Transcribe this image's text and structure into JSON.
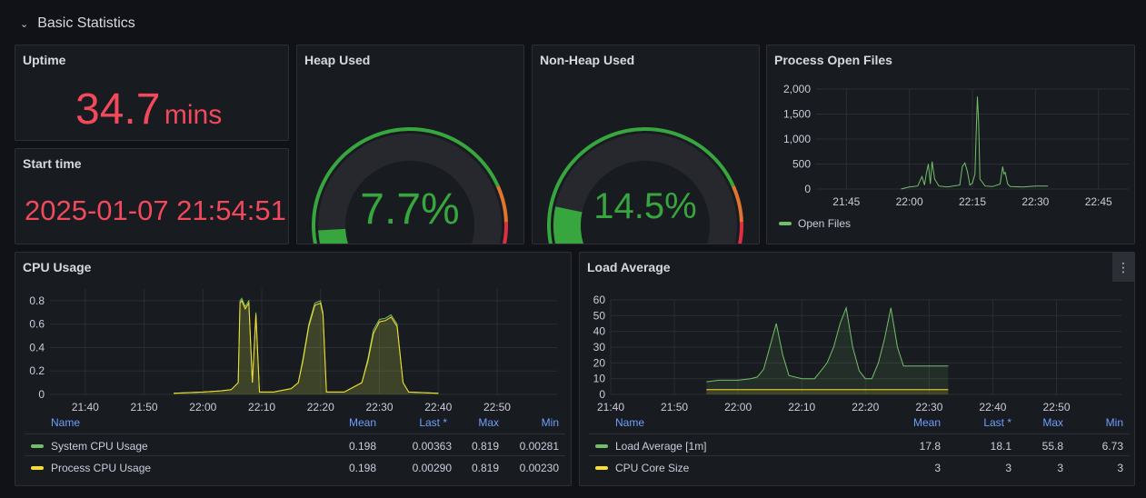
{
  "row": {
    "title": "Basic Statistics",
    "chevron_icon": "chevron-down-icon"
  },
  "uptime": {
    "title": "Uptime",
    "value": "34.7",
    "unit": "mins",
    "color": "#f2495c"
  },
  "start_time": {
    "title": "Start time",
    "value": "2025-01-07 21:54:51",
    "color": "#f2495c"
  },
  "heap": {
    "title": "Heap Used",
    "value": "7.7%",
    "percent": 7.7,
    "color": "#37a63e"
  },
  "nonheap": {
    "title": "Non-Heap Used",
    "value": "14.5%",
    "percent": 14.5,
    "color": "#37a63e"
  },
  "gauge_thresholds": {
    "green": "#37a63e",
    "orange": "#e0752d",
    "red": "#e02f44"
  },
  "open_files": {
    "title": "Process Open Files",
    "legend": "Open Files",
    "color": "#73bf69"
  },
  "cpu": {
    "title": "CPU Usage",
    "columns": [
      "Name",
      "Mean",
      "Last *",
      "Max",
      "Min"
    ],
    "rows": [
      {
        "name": "System CPU Usage",
        "mean": "0.198",
        "last": "0.00363",
        "max": "0.819",
        "min": "0.00281",
        "color": "#73bf69"
      },
      {
        "name": "Process CPU Usage",
        "mean": "0.198",
        "last": "0.00290",
        "max": "0.819",
        "min": "0.00230",
        "color": "#fade2a"
      }
    ]
  },
  "load": {
    "title": "Load Average",
    "menu_icon": "kebab-menu-icon",
    "columns": [
      "Name",
      "Mean",
      "Last *",
      "Max",
      "Min"
    ],
    "rows": [
      {
        "name": "Load Average [1m]",
        "mean": "17.8",
        "last": "18.1",
        "max": "55.8",
        "min": "6.73",
        "color": "#73bf69"
      },
      {
        "name": "CPU Core Size",
        "mean": "3",
        "last": "3",
        "max": "3",
        "min": "3",
        "color": "#fade2a"
      }
    ]
  },
  "chart_data": [
    {
      "type": "line",
      "ylim": [
        0,
        2000
      ],
      "yticks": [
        "0",
        "500",
        "1,000",
        "1,500",
        "2,000"
      ],
      "xticks": [
        "21:45",
        "22:00",
        "22:15",
        "22:30",
        "22:45"
      ],
      "series": [
        {
          "name": "Open Files",
          "color": "#73bf69",
          "points": [
            [
              21.967,
              0
            ],
            [
              21.983,
              20
            ],
            [
              22.0,
              40
            ],
            [
              22.033,
              60
            ],
            [
              22.05,
              250
            ],
            [
              22.06,
              80
            ],
            [
              22.067,
              300
            ],
            [
              22.075,
              500
            ],
            [
              22.083,
              100
            ],
            [
              22.09,
              550
            ],
            [
              22.1,
              200
            ],
            [
              22.117,
              60
            ],
            [
              22.15,
              40
            ],
            [
              22.2,
              80
            ],
            [
              22.21,
              450
            ],
            [
              22.22,
              520
            ],
            [
              22.23,
              350
            ],
            [
              22.24,
              80
            ],
            [
              22.25,
              120
            ],
            [
              22.26,
              300
            ],
            [
              22.265,
              1150
            ],
            [
              22.27,
              1850
            ],
            [
              22.275,
              1300
            ],
            [
              22.28,
              200
            ],
            [
              22.3,
              60
            ],
            [
              22.33,
              50
            ],
            [
              22.36,
              100
            ],
            [
              22.37,
              450
            ],
            [
              22.375,
              300
            ],
            [
              22.38,
              330
            ],
            [
              22.39,
              100
            ],
            [
              22.4,
              50
            ],
            [
              22.45,
              40
            ],
            [
              22.5,
              60
            ],
            [
              22.55,
              60
            ]
          ]
        }
      ]
    },
    {
      "type": "area",
      "ylim": [
        0,
        0.9
      ],
      "yticks": [
        "0",
        "0.2",
        "0.4",
        "0.6",
        "0.8"
      ],
      "xticks": [
        "21:40",
        "21:50",
        "22:00",
        "22:10",
        "22:20",
        "22:30",
        "22:40",
        "22:50"
      ],
      "series": [
        {
          "name": "System CPU Usage",
          "color": "#73bf69",
          "points": [
            [
              21.917,
              0.01
            ],
            [
              22.0,
              0.02
            ],
            [
              22.05,
              0.03
            ],
            [
              22.08,
              0.04
            ],
            [
              22.1,
              0.1
            ],
            [
              22.105,
              0.8
            ],
            [
              22.11,
              0.82
            ],
            [
              22.12,
              0.75
            ],
            [
              22.13,
              0.8
            ],
            [
              22.14,
              0.1
            ],
            [
              22.15,
              0.7
            ],
            [
              22.16,
              0.02
            ],
            [
              22.2,
              0.02
            ],
            [
              22.25,
              0.05
            ],
            [
              22.27,
              0.1
            ],
            [
              22.283,
              0.3
            ],
            [
              22.3,
              0.6
            ],
            [
              22.317,
              0.78
            ],
            [
              22.333,
              0.8
            ],
            [
              22.34,
              0.7
            ],
            [
              22.35,
              0.02
            ],
            [
              22.4,
              0.02
            ],
            [
              22.45,
              0.1
            ],
            [
              22.467,
              0.3
            ],
            [
              22.483,
              0.55
            ],
            [
              22.5,
              0.64
            ],
            [
              22.517,
              0.65
            ],
            [
              22.533,
              0.68
            ],
            [
              22.55,
              0.6
            ],
            [
              22.567,
              0.1
            ],
            [
              22.583,
              0.02
            ],
            [
              22.667,
              0.01
            ]
          ]
        },
        {
          "name": "Process CPU Usage",
          "color": "#fade2a",
          "points": [
            [
              21.917,
              0.01
            ],
            [
              22.0,
              0.02
            ],
            [
              22.05,
              0.03
            ],
            [
              22.08,
              0.04
            ],
            [
              22.1,
              0.1
            ],
            [
              22.105,
              0.78
            ],
            [
              22.11,
              0.8
            ],
            [
              22.12,
              0.73
            ],
            [
              22.13,
              0.78
            ],
            [
              22.14,
              0.1
            ],
            [
              22.15,
              0.68
            ],
            [
              22.16,
              0.02
            ],
            [
              22.2,
              0.02
            ],
            [
              22.25,
              0.05
            ],
            [
              22.27,
              0.1
            ],
            [
              22.283,
              0.28
            ],
            [
              22.3,
              0.58
            ],
            [
              22.317,
              0.76
            ],
            [
              22.333,
              0.78
            ],
            [
              22.34,
              0.68
            ],
            [
              22.35,
              0.02
            ],
            [
              22.4,
              0.02
            ],
            [
              22.45,
              0.1
            ],
            [
              22.467,
              0.28
            ],
            [
              22.483,
              0.52
            ],
            [
              22.5,
              0.62
            ],
            [
              22.517,
              0.63
            ],
            [
              22.533,
              0.66
            ],
            [
              22.55,
              0.58
            ],
            [
              22.567,
              0.1
            ],
            [
              22.583,
              0.02
            ],
            [
              22.667,
              0.01
            ]
          ]
        }
      ]
    },
    {
      "type": "area",
      "ylim": [
        0,
        60
      ],
      "yticks": [
        "0",
        "10",
        "20",
        "30",
        "40",
        "50",
        "60"
      ],
      "xticks": [
        "21:40",
        "21:50",
        "22:00",
        "22:10",
        "22:20",
        "22:30",
        "22:40",
        "22:50"
      ],
      "series": [
        {
          "name": "Load Average [1m]",
          "color": "#73bf69",
          "points": [
            [
              21.917,
              8
            ],
            [
              21.95,
              9
            ],
            [
              22.0,
              9
            ],
            [
              22.033,
              10
            ],
            [
              22.05,
              11
            ],
            [
              22.067,
              16
            ],
            [
              22.083,
              30
            ],
            [
              22.1,
              45
            ],
            [
              22.117,
              25
            ],
            [
              22.133,
              12
            ],
            [
              22.167,
              10
            ],
            [
              22.2,
              10
            ],
            [
              22.217,
              15
            ],
            [
              22.233,
              20
            ],
            [
              22.25,
              30
            ],
            [
              22.267,
              45
            ],
            [
              22.283,
              55
            ],
            [
              22.3,
              30
            ],
            [
              22.317,
              15
            ],
            [
              22.333,
              10
            ],
            [
              22.35,
              10
            ],
            [
              22.367,
              20
            ],
            [
              22.383,
              35
            ],
            [
              22.4,
              55
            ],
            [
              22.417,
              30
            ],
            [
              22.433,
              18
            ],
            [
              22.5,
              18
            ],
            [
              22.55,
              18
            ]
          ]
        },
        {
          "name": "CPU Core Size",
          "color": "#fade2a",
          "points": [
            [
              21.917,
              3
            ],
            [
              22.55,
              3
            ]
          ]
        }
      ]
    }
  ]
}
